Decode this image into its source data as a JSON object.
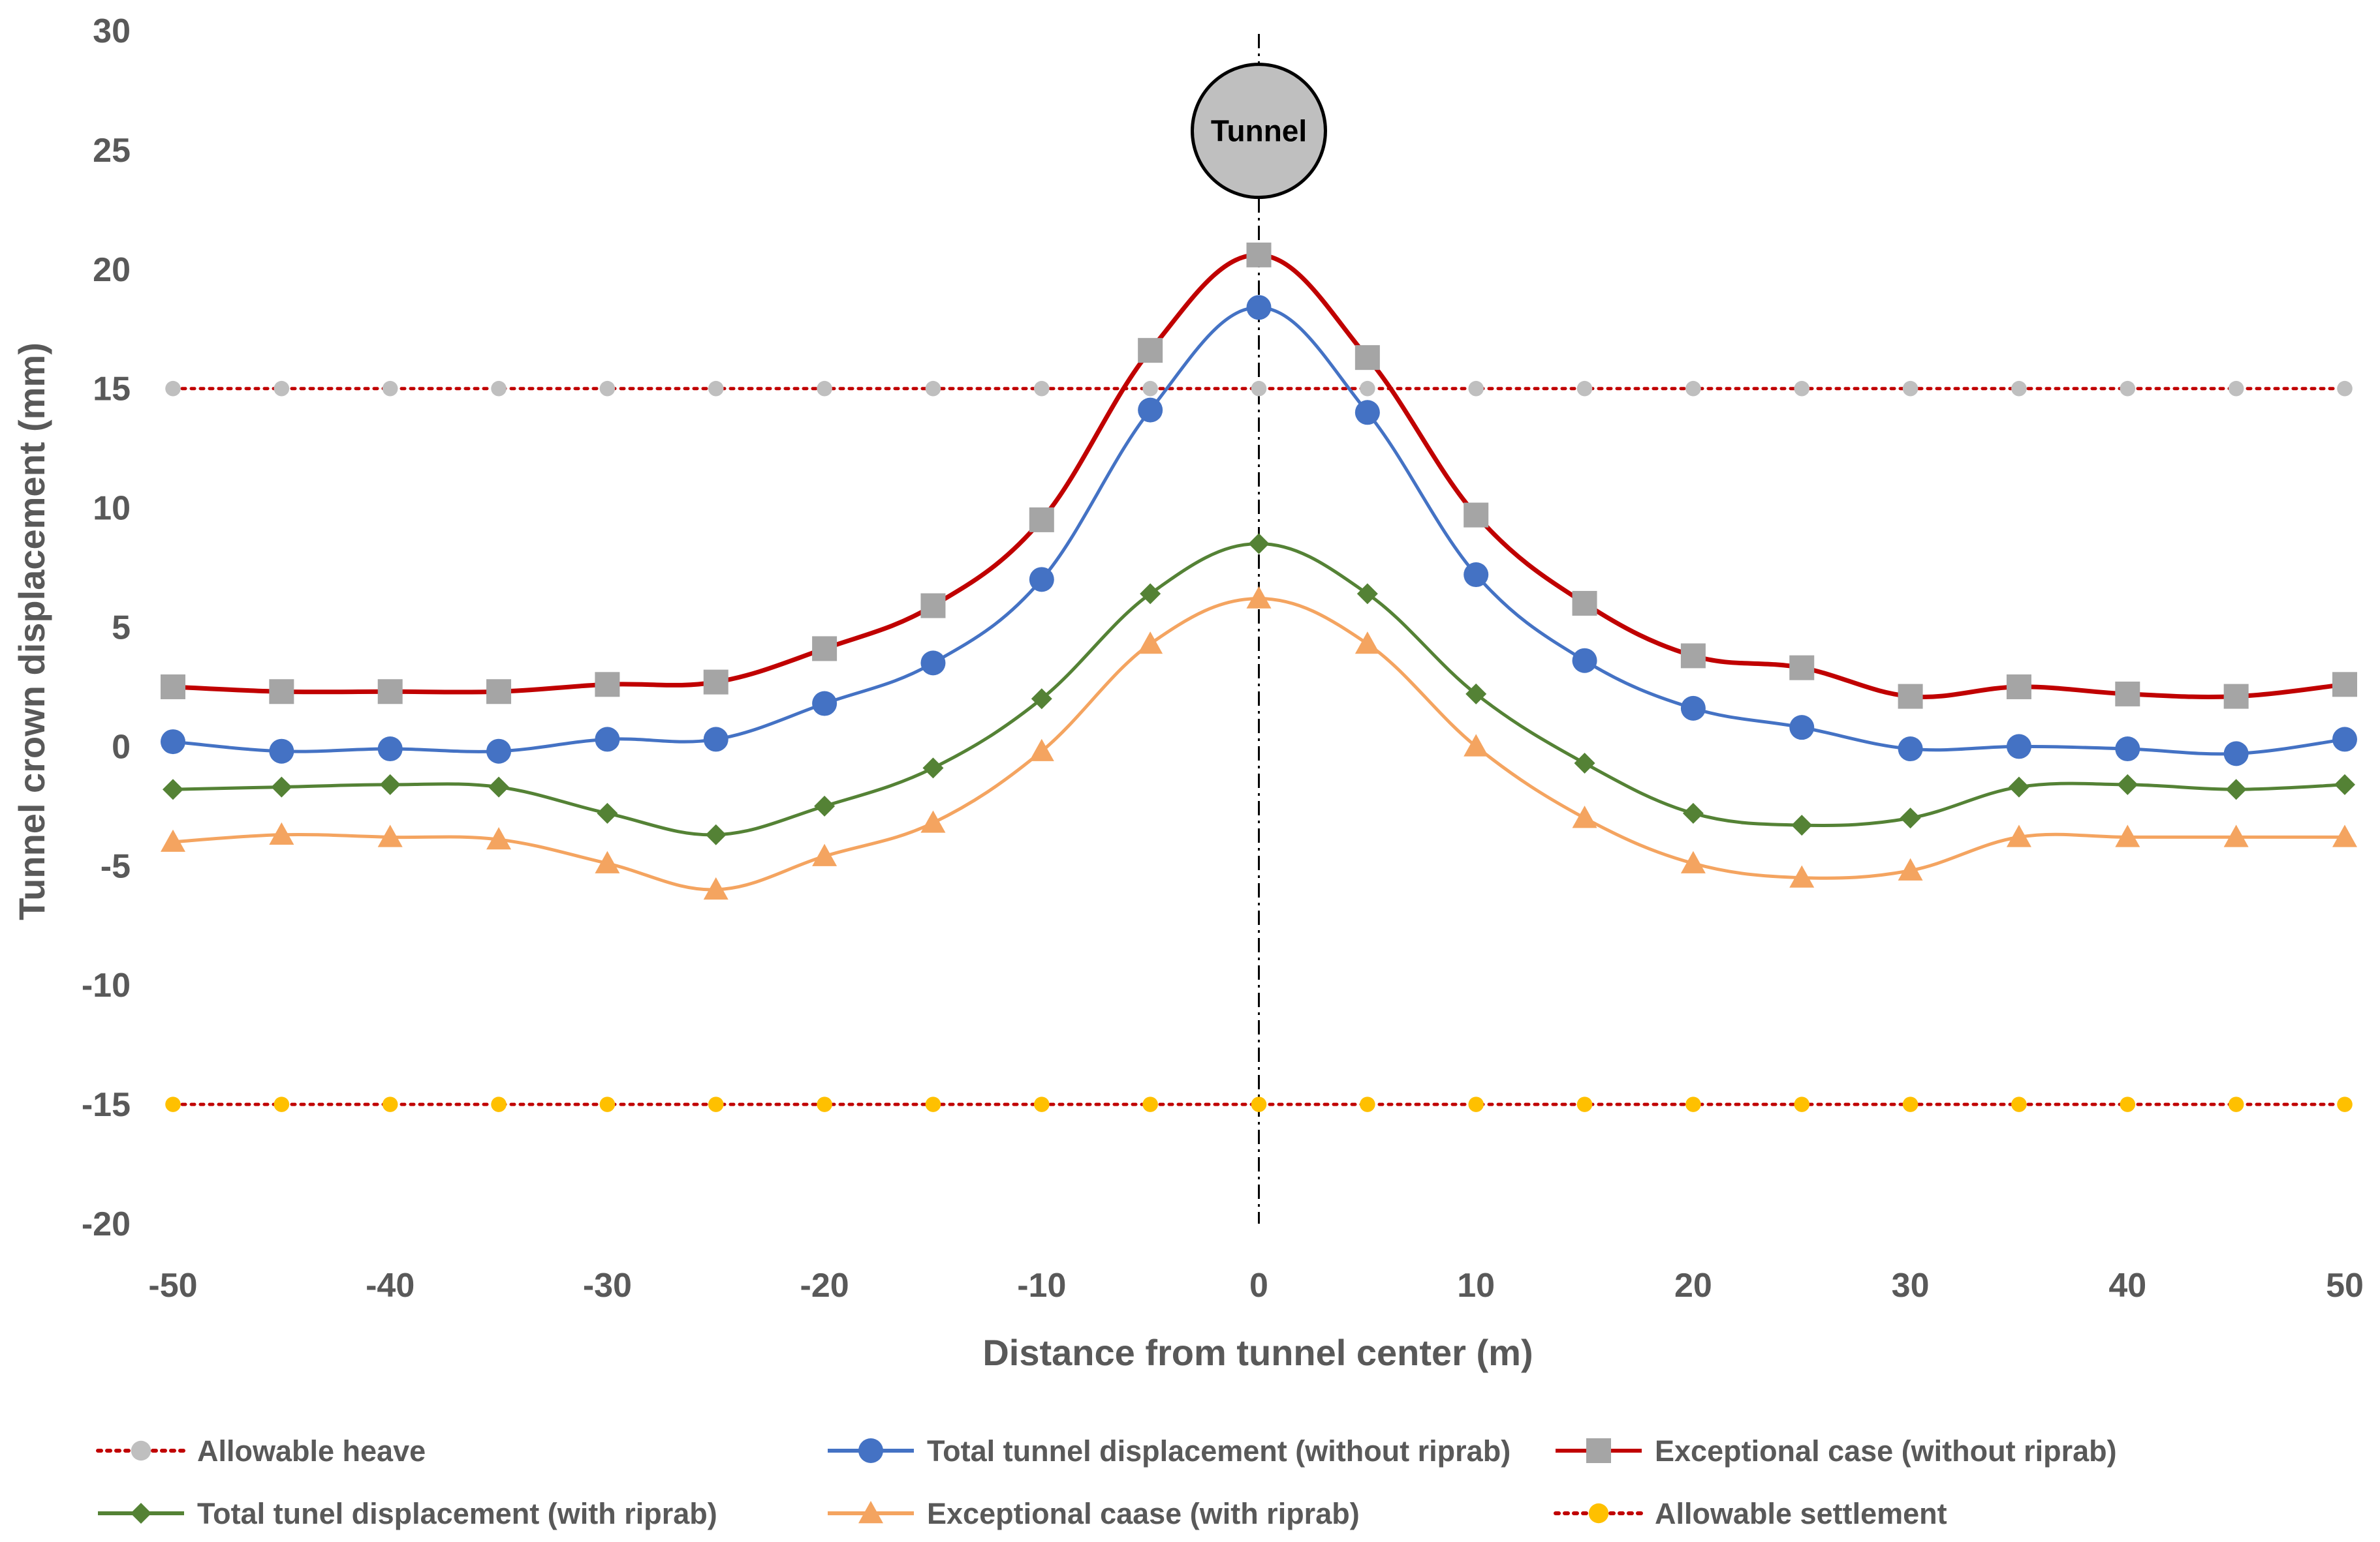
{
  "chart_data": {
    "type": "line",
    "xlabel": "Distance from tunnel center (m)",
    "ylabel": "Tunnel crown displacement (mm)",
    "xlim": [
      -50,
      50
    ],
    "ylim": [
      -20,
      30
    ],
    "x_ticks": [
      -50,
      -40,
      -30,
      -20,
      -10,
      0,
      10,
      20,
      30,
      40,
      50
    ],
    "y_ticks": [
      -20,
      -15,
      -10,
      -5,
      0,
      5,
      10,
      15,
      20,
      25,
      30
    ],
    "grid": false,
    "legend_position": "bottom",
    "annotations": [
      {
        "text": "Tunnel",
        "x": 0,
        "y": 25.8,
        "shape": "circle",
        "color": "#bfbfbf"
      }
    ],
    "center_line": {
      "x": 0,
      "style": "dash-dot",
      "color": "#000000"
    },
    "x": [
      -50,
      -45,
      -40,
      -35,
      -30,
      -25,
      -20,
      -15,
      -10,
      -5,
      0,
      5,
      10,
      15,
      20,
      25,
      30,
      35,
      40,
      45,
      50
    ],
    "series": [
      {
        "name": "Allowable heave",
        "line": "dotted",
        "line_color": "#c00000",
        "marker": "circle",
        "marker_color": "#bfbfbf",
        "smooth": false,
        "values": [
          15,
          15,
          15,
          15,
          15,
          15,
          15,
          15,
          15,
          15,
          15,
          15,
          15,
          15,
          15,
          15,
          15,
          15,
          15,
          15,
          15
        ]
      },
      {
        "name": "Total tunnel displacement (without riprab)",
        "line": "solid",
        "line_color": "#4472c4",
        "marker": "circle",
        "marker_color": "#4472c4",
        "smooth": true,
        "values": [
          0.2,
          -0.2,
          -0.1,
          -0.2,
          0.3,
          0.3,
          1.8,
          3.5,
          7.0,
          14.1,
          18.4,
          14.0,
          7.2,
          3.6,
          1.6,
          0.8,
          -0.1,
          0.0,
          -0.1,
          -0.3,
          0.3
        ]
      },
      {
        "name": "Exceptional case (without riprab)",
        "line": "solid",
        "line_color": "#c00000",
        "marker": "square",
        "marker_color": "#a5a5a5",
        "smooth": true,
        "values": [
          2.5,
          2.3,
          2.3,
          2.3,
          2.6,
          2.7,
          4.1,
          5.9,
          9.5,
          16.6,
          20.6,
          16.3,
          9.7,
          6.0,
          3.8,
          3.3,
          2.1,
          2.5,
          2.2,
          2.1,
          2.6
        ]
      },
      {
        "name": "Total tunel displacement (with riprab)",
        "line": "solid",
        "line_color": "#548235",
        "marker": "diamond",
        "marker_color": "#548235",
        "smooth": true,
        "values": [
          -1.8,
          -1.7,
          -1.6,
          -1.7,
          -2.8,
          -3.7,
          -2.5,
          -0.9,
          2.0,
          6.4,
          8.5,
          6.4,
          2.2,
          -0.7,
          -2.8,
          -3.3,
          -3.0,
          -1.7,
          -1.6,
          -1.8,
          -1.6
        ]
      },
      {
        "name": "Exceptional caase (with riprab)",
        "line": "solid",
        "line_color": "#f4a460",
        "marker": "triangle",
        "marker_color": "#f4a460",
        "smooth": true,
        "values": [
          -4.0,
          -3.7,
          -3.8,
          -3.9,
          -4.9,
          -6.0,
          -4.6,
          -3.2,
          -0.2,
          4.3,
          6.2,
          4.3,
          0.0,
          -3.0,
          -4.9,
          -5.5,
          -5.2,
          -3.8,
          -3.8,
          -3.8,
          -3.8
        ]
      },
      {
        "name": "Allowable settlement",
        "line": "dotted",
        "line_color": "#c00000",
        "marker": "circle",
        "marker_color": "#ffc000",
        "smooth": false,
        "values": [
          -15,
          -15,
          -15,
          -15,
          -15,
          -15,
          -15,
          -15,
          -15,
          -15,
          -15,
          -15,
          -15,
          -15,
          -15,
          -15,
          -15,
          -15,
          -15,
          -15,
          -15
        ]
      }
    ],
    "legend_order": [
      0,
      1,
      2,
      3,
      4,
      5
    ]
  }
}
